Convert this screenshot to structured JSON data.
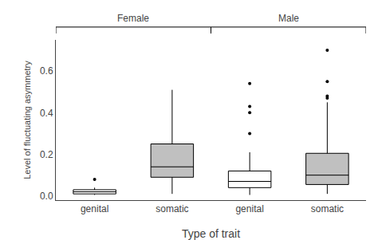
{
  "chart_data": {
    "type": "box",
    "xlabel": "Type of trait",
    "ylabel": "Level of fluctuating asymmetry",
    "categories": [
      "genital",
      "somatic",
      "genital",
      "somatic"
    ],
    "boxes": [
      {
        "group": "Female",
        "q1": 0.01,
        "median": 0.02,
        "q3": 0.03,
        "whisker_low": 0.005,
        "whisker_high": 0.04,
        "outliers": [
          0.08
        ],
        "color": "white"
      },
      {
        "group": "Female",
        "q1": 0.09,
        "median": 0.14,
        "q3": 0.25,
        "whisker_low": 0.01,
        "whisker_high": 0.51,
        "outliers": [],
        "color": "#c0c0c0"
      },
      {
        "group": "Male",
        "q1": 0.04,
        "median": 0.07,
        "q3": 0.12,
        "whisker_low": 0.005,
        "whisker_high": 0.21,
        "outliers": [
          0.3,
          0.4,
          0.43,
          0.54
        ],
        "color": "white"
      },
      {
        "group": "Male",
        "q1": 0.055,
        "median": 0.1,
        "q3": 0.205,
        "whisker_low": 0.01,
        "whisker_high": 0.45,
        "outliers": [
          0.47,
          0.48,
          0.55,
          0.7
        ],
        "color": "#c0c0c0"
      }
    ],
    "ylim": [
      -0.02,
      0.75
    ],
    "yticks": [
      {
        "value": 0.0,
        "label": "0.0"
      },
      0.2,
      0.4,
      0.6
    ],
    "grid": false
  }
}
